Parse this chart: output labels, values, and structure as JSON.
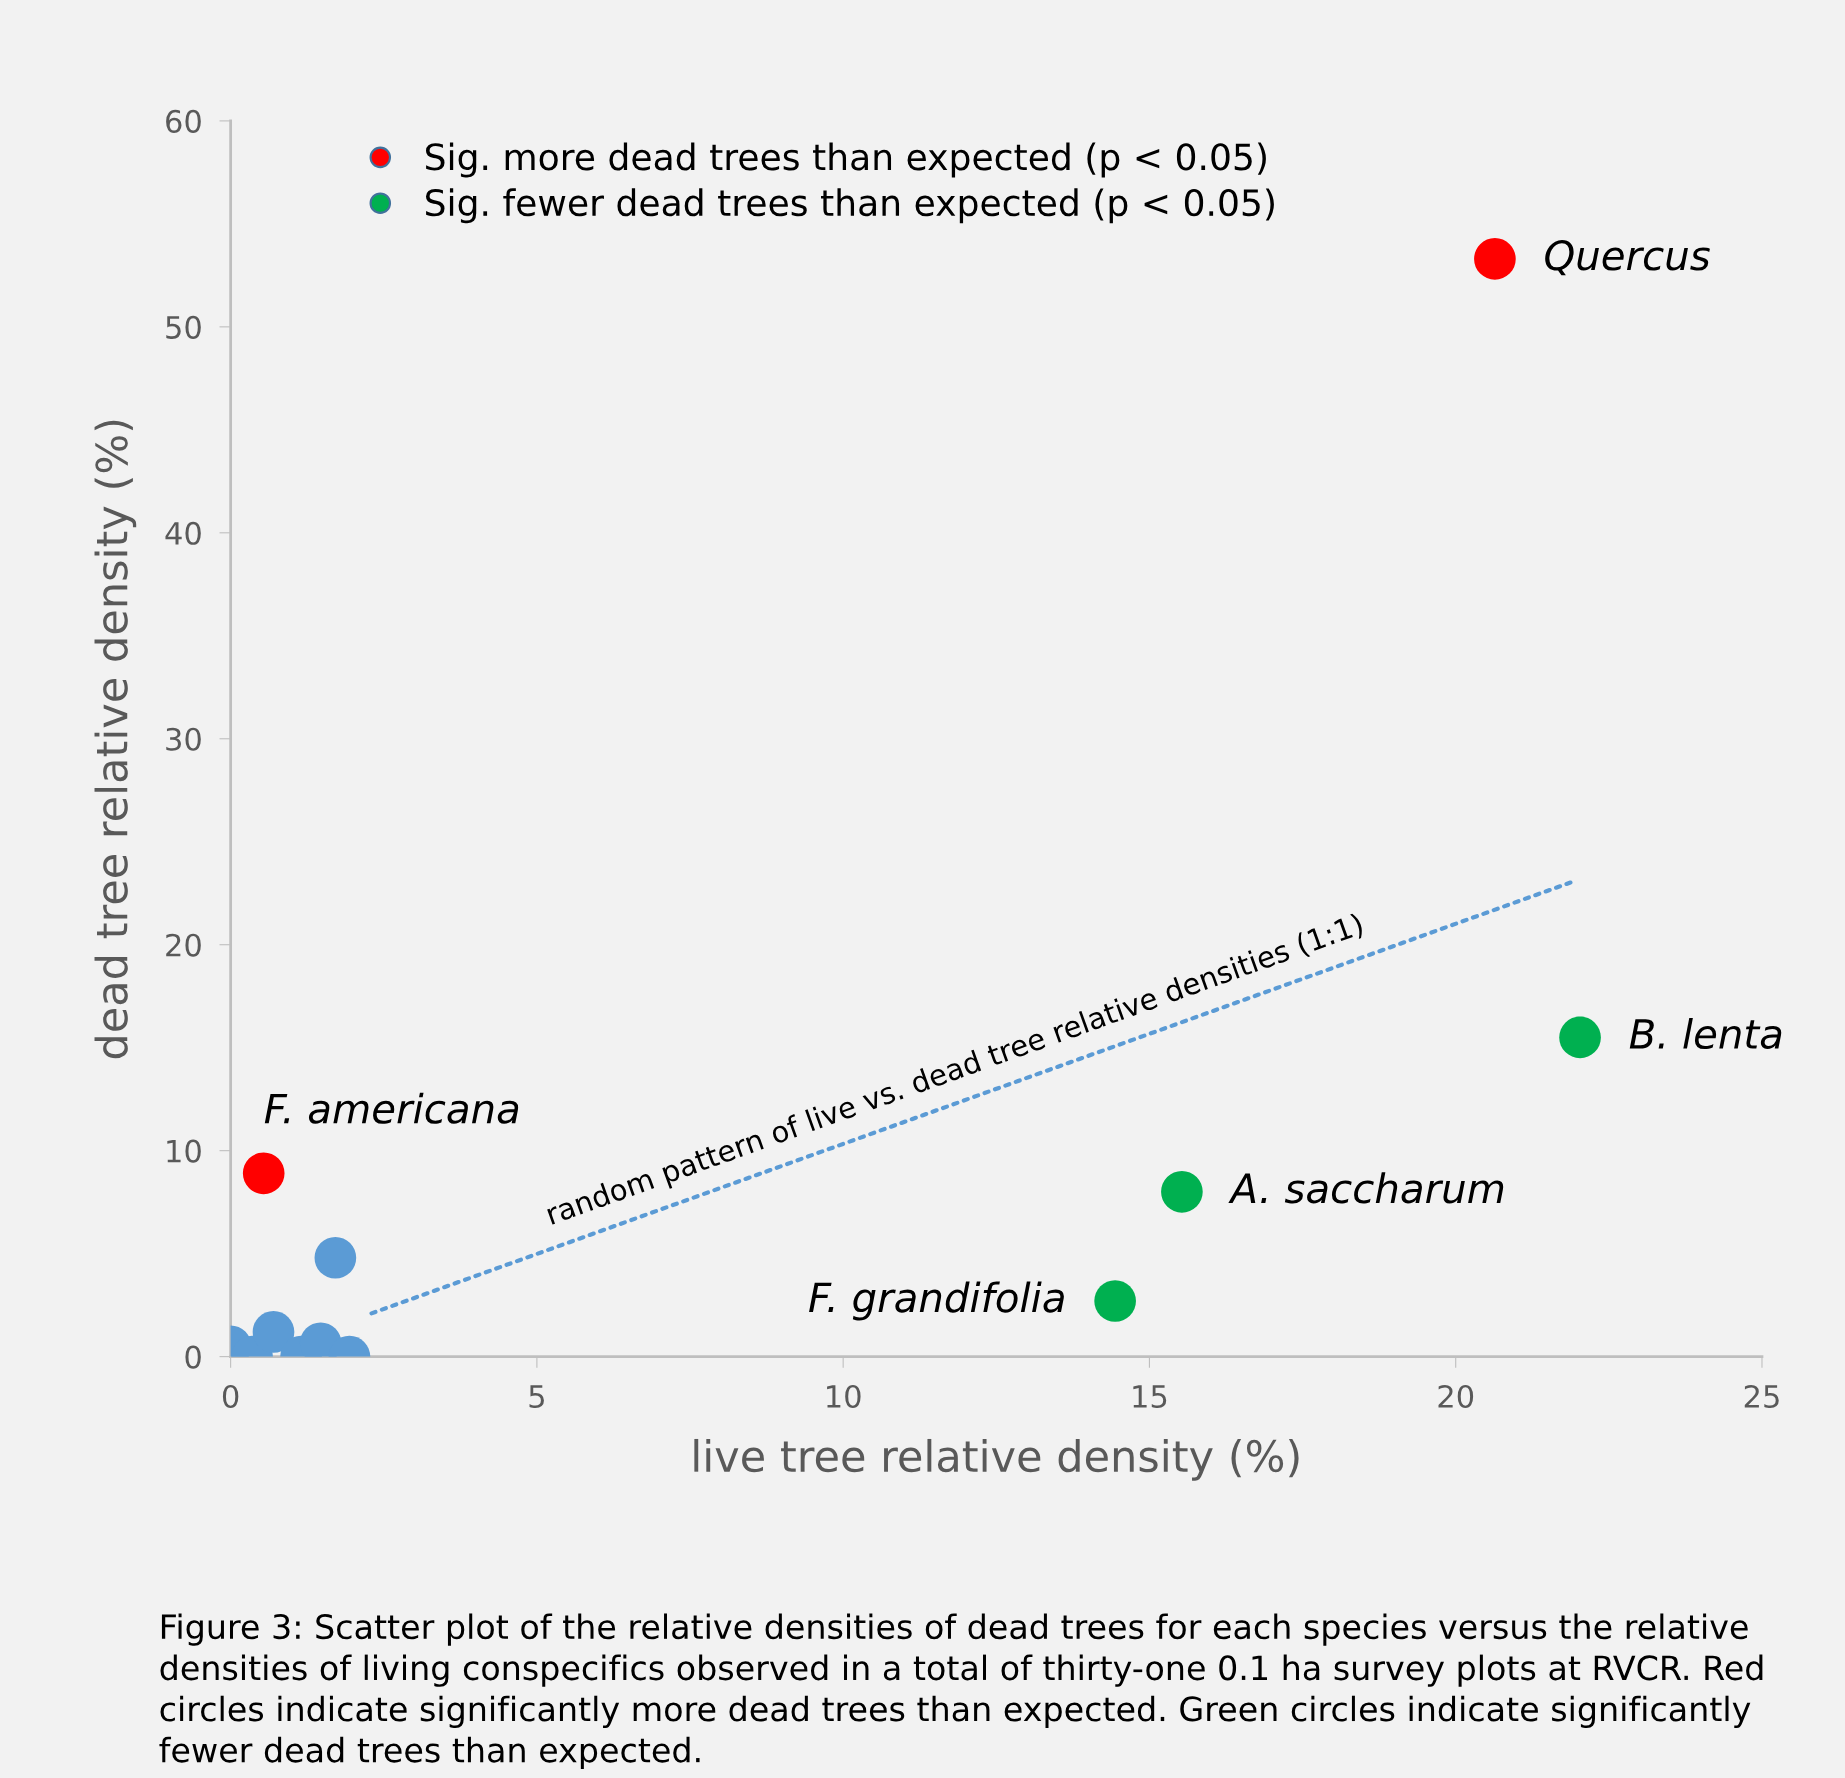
{
  "chart_data": {
    "type": "scatter",
    "xlabel": "live tree relative density (%)",
    "ylabel": "dead tree relative density (%)",
    "xlim": [
      0,
      25
    ],
    "xticks": [
      0,
      5,
      10,
      15,
      20,
      25
    ],
    "ylim": [
      0,
      60
    ],
    "yticks": [
      0,
      10,
      20,
      30,
      40,
      50,
      60
    ],
    "grid": false,
    "legend": "top left",
    "marker": "circle",
    "series": [
      {
        "type": "line",
        "color": "#5b9bd5",
        "line_style": "dotted",
        "marker": "none",
        "x": [
          2.3,
          21.95
        ],
        "values": [
          2.1,
          23.1
        ]
      },
      {
        "color": "#5b9bd5",
        "x": [
          0,
          0.35,
          0.7,
          1.15,
          1.47,
          1.94,
          1.71
        ],
        "values": [
          0.5,
          0,
          1.2,
          0,
          0.65,
          0,
          4.8
        ]
      },
      {
        "name": "Sig. more dead trees than expected (p < 0.05)",
        "color": "#ff0000",
        "x": [
          20.64,
          0.54
        ],
        "values": [
          53.3,
          8.9
        ]
      },
      {
        "name": "Sig. fewer dead trees than expected (p < 0.05)",
        "color": "#00b050",
        "x": [
          22.03,
          15.53,
          14.44
        ],
        "values": [
          15.5,
          8.0,
          2.7
        ]
      }
    ],
    "annotations": [
      {
        "text": "Quercus",
        "x": 20.64,
        "y": 53.3
      },
      {
        "text": "F. americana",
        "x": 0.54,
        "y": 8.9
      },
      {
        "text": "B. lenta",
        "x": 22.03,
        "y": 15.5
      },
      {
        "text": "A. saccharum",
        "x": 15.53,
        "y": 8.0
      },
      {
        "text": "F. grandifolia",
        "x": 14.44,
        "y": 2.7
      },
      {
        "text": "random pattern of live vs. dead tree relative densities (1:1)",
        "x": 12.0,
        "y": 12.46
      },
      "Figure 3: Scatter plot of the relative densities of dead trees for each species versus the relative densities of living conspecifics observed in a total of thirty-one 0.1 ha survey plots at RVCR. Red circles indicate significantly more dead trees than expected. Green circles indicate significantly fewer dead trees than expected."
    ]
  }
}
